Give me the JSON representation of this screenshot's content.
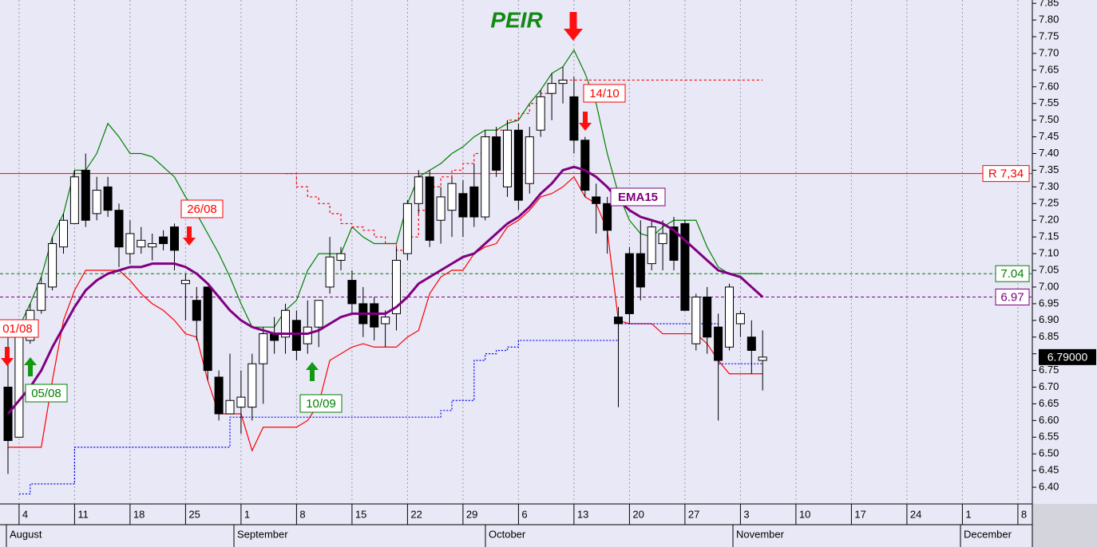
{
  "chart_data": {
    "type": "candlestick",
    "title": "PEIR",
    "ylim": [
      6.35,
      7.86
    ],
    "yticks": [
      {
        "value": 6.4,
        "label": "6.40"
      },
      6.45,
      {
        "value": 6.5,
        "label": "6.50"
      },
      6.55,
      {
        "value": 6.6,
        "label": "6.60"
      },
      6.65,
      {
        "value": 6.7,
        "label": "6.70"
      },
      6.75,
      {
        "value": 6.8,
        "label": "6.80"
      },
      6.85,
      {
        "value": 6.9,
        "label": "6.90"
      },
      6.95,
      {
        "value": 7.0,
        "label": "7.00"
      },
      7.05,
      {
        "value": 7.1,
        "label": "7.10"
      },
      7.15,
      {
        "value": 7.2,
        "label": "7.20"
      },
      7.25,
      {
        "value": 7.3,
        "label": "7.30"
      },
      7.35,
      {
        "value": 7.4,
        "label": "7.40"
      },
      7.45,
      {
        "value": 7.5,
        "label": "7.50"
      },
      7.55,
      {
        "value": 7.6,
        "label": "7.60"
      },
      7.65,
      {
        "value": 7.7,
        "label": "7.70"
      },
      7.75,
      {
        "value": 7.8,
        "label": "7.80"
      },
      7.85
    ],
    "xticks": [
      "4",
      "11",
      "18",
      "25",
      "1",
      "8",
      "15",
      "22",
      "29",
      "6",
      "13",
      "20",
      "27",
      "3",
      "10",
      "17",
      "24",
      "1",
      "8"
    ],
    "months": [
      "August",
      "September",
      "October",
      "November",
      "December"
    ],
    "grid": true,
    "up_color": "#ffffff",
    "down_color": "#000000",
    "candles": [
      [
        6.7,
        6.85,
        6.44,
        6.54
      ],
      [
        6.55,
        6.88,
        6.55,
        6.85
      ],
      [
        6.84,
        6.95,
        6.83,
        6.93
      ],
      [
        6.93,
        7.03,
        6.92,
        7.01
      ],
      [
        7.0,
        7.15,
        6.99,
        7.13
      ],
      [
        7.12,
        7.22,
        7.1,
        7.2
      ],
      [
        7.19,
        7.35,
        7.19,
        7.33
      ],
      [
        7.35,
        7.4,
        7.18,
        7.2
      ],
      [
        7.22,
        7.33,
        7.2,
        7.29
      ],
      [
        7.3,
        7.33,
        7.21,
        7.23
      ],
      [
        7.23,
        7.25,
        7.06,
        7.12
      ],
      [
        7.1,
        7.2,
        7.07,
        7.16
      ],
      [
        7.12,
        7.18,
        7.1,
        7.14
      ],
      [
        7.12,
        7.16,
        7.08,
        7.13
      ],
      [
        7.15,
        7.17,
        7.11,
        7.13
      ],
      [
        7.18,
        7.19,
        7.05,
        7.11
      ],
      [
        7.01,
        7.04,
        6.9,
        7.02
      ],
      [
        6.96,
        7.0,
        6.84,
        6.9
      ],
      [
        7.0,
        7.0,
        6.72,
        6.75
      ],
      [
        6.73,
        6.75,
        6.6,
        6.62
      ],
      [
        6.62,
        6.8,
        6.62,
        6.66
      ],
      [
        6.64,
        6.75,
        6.56,
        6.67
      ],
      [
        6.64,
        6.8,
        6.6,
        6.77
      ],
      [
        6.77,
        6.88,
        6.65,
        6.86
      ],
      [
        6.86,
        6.91,
        6.8,
        6.84
      ],
      [
        6.85,
        6.95,
        6.8,
        6.93
      ],
      [
        6.9,
        6.93,
        6.78,
        6.81
      ],
      [
        6.83,
        6.96,
        6.8,
        6.88
      ],
      [
        6.88,
        6.96,
        6.82,
        6.96
      ],
      [
        7.0,
        7.15,
        6.98,
        7.09
      ],
      [
        7.08,
        7.12,
        7.05,
        7.1
      ],
      [
        7.02,
        7.05,
        6.92,
        6.95
      ],
      [
        6.95,
        7.0,
        6.85,
        6.89
      ],
      [
        6.95,
        6.97,
        6.84,
        6.88
      ],
      [
        6.89,
        6.93,
        6.82,
        6.91
      ],
      [
        6.92,
        7.12,
        6.87,
        7.08
      ],
      [
        7.1,
        7.26,
        7.08,
        7.25
      ],
      [
        7.25,
        7.35,
        7.22,
        7.33
      ],
      [
        7.33,
        7.35,
        7.12,
        7.14
      ],
      [
        7.2,
        7.3,
        7.13,
        7.27
      ],
      [
        7.23,
        7.33,
        7.15,
        7.31
      ],
      [
        7.28,
        7.32,
        7.15,
        7.21
      ],
      [
        7.3,
        7.37,
        7.18,
        7.21
      ],
      [
        7.21,
        7.47,
        7.2,
        7.45
      ],
      [
        7.45,
        7.48,
        7.33,
        7.35
      ],
      [
        7.3,
        7.5,
        7.27,
        7.47
      ],
      [
        7.47,
        7.49,
        7.23,
        7.26
      ],
      [
        7.31,
        7.48,
        7.28,
        7.45
      ],
      [
        7.47,
        7.59,
        7.45,
        7.57
      ],
      [
        7.58,
        7.64,
        7.5,
        7.61
      ],
      [
        7.61,
        7.66,
        7.55,
        7.62
      ],
      [
        7.57,
        7.63,
        7.4,
        7.44
      ],
      [
        7.44,
        7.45,
        7.27,
        7.29
      ],
      [
        7.27,
        7.31,
        7.16,
        7.25
      ],
      [
        7.25,
        7.27,
        7.1,
        7.17
      ],
      [
        6.91,
        6.94,
        6.64,
        6.89
      ],
      [
        7.1,
        7.12,
        6.89,
        6.92
      ],
      [
        7.1,
        7.2,
        6.96,
        7.0
      ],
      [
        7.07,
        7.2,
        7.05,
        7.18
      ],
      [
        7.13,
        7.2,
        7.05,
        7.16
      ],
      [
        7.18,
        7.21,
        7.05,
        7.08
      ],
      [
        7.19,
        7.2,
        6.93,
        6.93
      ],
      [
        6.83,
        6.98,
        6.81,
        6.97
      ],
      [
        6.97,
        7.0,
        6.8,
        6.85
      ],
      [
        6.88,
        6.92,
        6.6,
        6.78
      ],
      [
        6.82,
        7.01,
        6.81,
        7.0
      ],
      [
        6.89,
        6.93,
        6.85,
        6.92
      ],
      [
        6.85,
        6.9,
        6.74,
        6.81
      ],
      [
        6.78,
        6.87,
        6.69,
        6.79
      ]
    ],
    "series": [
      {
        "color": "#008000",
        "style": "line",
        "values": [
          6.86,
          6.88,
          6.95,
          7.03,
          7.15,
          7.22,
          7.35,
          7.35,
          7.4,
          7.49,
          7.45,
          7.4,
          7.4,
          7.39,
          7.36,
          7.33,
          7.27,
          7.22,
          7.16,
          7.1,
          7.03,
          6.95,
          6.88,
          6.88,
          6.88,
          6.93,
          6.96,
          7.05,
          7.1,
          7.1,
          7.1,
          7.18,
          7.15,
          7.13,
          7.13,
          7.13,
          7.25,
          7.33,
          7.35,
          7.37,
          7.4,
          7.42,
          7.45,
          7.47,
          7.47,
          7.49,
          7.5,
          7.55,
          7.59,
          7.64,
          7.66,
          7.71,
          7.64,
          7.55,
          7.4,
          7.28,
          7.2,
          7.16,
          7.15,
          7.18,
          7.2,
          7.2,
          7.2,
          7.12,
          7.06,
          7.04,
          7.04,
          7.04,
          7.04
        ]
      },
      {
        "color": "#ff0000",
        "style": "line",
        "values": [
          6.52,
          6.52,
          6.52,
          6.52,
          6.72,
          6.9,
          6.99,
          7.05,
          7.05,
          7.05,
          7.05,
          7.02,
          6.98,
          6.95,
          6.93,
          6.9,
          6.86,
          6.85,
          6.72,
          6.62,
          6.62,
          6.62,
          6.51,
          6.58,
          6.58,
          6.58,
          6.58,
          6.6,
          6.65,
          6.78,
          6.8,
          6.82,
          6.83,
          6.82,
          6.82,
          6.82,
          6.85,
          6.87,
          6.98,
          7.03,
          7.05,
          7.05,
          7.1,
          7.12,
          7.13,
          7.18,
          7.2,
          7.23,
          7.27,
          7.28,
          7.3,
          7.33,
          7.27,
          7.25,
          7.17,
          6.9,
          6.89,
          6.89,
          6.89,
          6.86,
          6.86,
          6.86,
          6.86,
          6.83,
          6.78,
          6.74,
          6.74,
          6.74,
          6.74
        ]
      },
      {
        "color": "#ff0000",
        "style": "dash-step",
        "values": [
          null,
          null,
          null,
          null,
          null,
          null,
          null,
          null,
          null,
          null,
          null,
          null,
          null,
          null,
          null,
          null,
          null,
          null,
          null,
          null,
          null,
          null,
          null,
          null,
          null,
          7.34,
          7.3,
          7.27,
          7.25,
          7.22,
          7.19,
          7.18,
          7.17,
          7.15,
          7.13,
          7.11,
          7.15,
          7.23,
          7.3,
          7.33,
          7.35,
          7.37,
          7.4,
          7.45,
          7.47,
          7.5,
          7.52,
          7.55,
          7.58,
          7.61,
          7.62,
          7.62,
          7.62,
          7.62,
          7.62,
          7.62,
          7.62,
          7.62,
          7.62,
          7.62,
          7.62,
          7.62,
          7.62,
          7.62,
          7.62,
          7.62,
          7.62,
          7.62,
          7.62
        ]
      },
      {
        "color": "#0000ff",
        "style": "dot-step",
        "values": [
          null,
          6.38,
          6.41,
          6.41,
          6.41,
          6.41,
          6.52,
          6.52,
          6.52,
          6.52,
          6.52,
          6.52,
          6.52,
          6.52,
          6.52,
          6.52,
          6.52,
          6.52,
          6.52,
          6.52,
          6.61,
          6.61,
          6.61,
          6.61,
          6.61,
          6.61,
          6.61,
          6.61,
          6.61,
          6.61,
          6.61,
          6.61,
          6.61,
          6.61,
          6.61,
          6.61,
          6.61,
          6.61,
          6.61,
          6.63,
          6.66,
          6.66,
          6.78,
          6.8,
          6.81,
          6.82,
          6.84,
          6.84,
          6.84,
          6.84,
          6.84,
          6.84,
          6.84,
          6.84,
          6.84,
          6.89,
          6.89,
          6.89,
          6.89,
          6.89,
          6.89,
          6.89,
          6.89,
          6.89,
          6.77,
          6.77,
          6.77,
          6.77,
          6.77
        ]
      },
      {
        "name": "EMA15",
        "color": "#800080",
        "style": "thick",
        "values": [
          6.62,
          6.66,
          6.7,
          6.75,
          6.82,
          6.88,
          6.94,
          6.99,
          7.02,
          7.04,
          7.05,
          7.06,
          7.06,
          7.07,
          7.07,
          7.07,
          7.06,
          7.04,
          7.01,
          6.97,
          6.93,
          6.9,
          6.88,
          6.87,
          6.86,
          6.86,
          6.86,
          6.86,
          6.87,
          6.89,
          6.91,
          6.92,
          6.92,
          6.92,
          6.92,
          6.94,
          6.97,
          7.01,
          7.03,
          7.05,
          7.07,
          7.09,
          7.1,
          7.13,
          7.16,
          7.19,
          7.21,
          7.24,
          7.28,
          7.31,
          7.35,
          7.36,
          7.35,
          7.33,
          7.3,
          7.26,
          7.23,
          7.21,
          7.2,
          7.19,
          7.17,
          7.14,
          7.11,
          7.08,
          7.05,
          7.04,
          7.03,
          7.0,
          6.97
        ]
      }
    ],
    "levels": [
      {
        "value": 7.34,
        "label": "R 7,34",
        "color": "#ff0000",
        "style": "solid"
      },
      {
        "value": 7.04,
        "label": "7.04",
        "color": "#008000",
        "style": "dash"
      },
      {
        "value": 6.97,
        "label": "6.97",
        "color": "#800080",
        "style": "dash"
      }
    ],
    "last_price": {
      "value": 6.79,
      "label": "6.79000"
    },
    "annotations": [
      {
        "text": "01/08",
        "color": "#ff0000"
      },
      {
        "text": "05/08",
        "color": "#008000"
      },
      {
        "text": "26/08",
        "color": "#ff0000"
      },
      {
        "text": "10/09",
        "color": "#008000"
      },
      {
        "text": "14/10",
        "color": "#ff0000"
      }
    ]
  }
}
